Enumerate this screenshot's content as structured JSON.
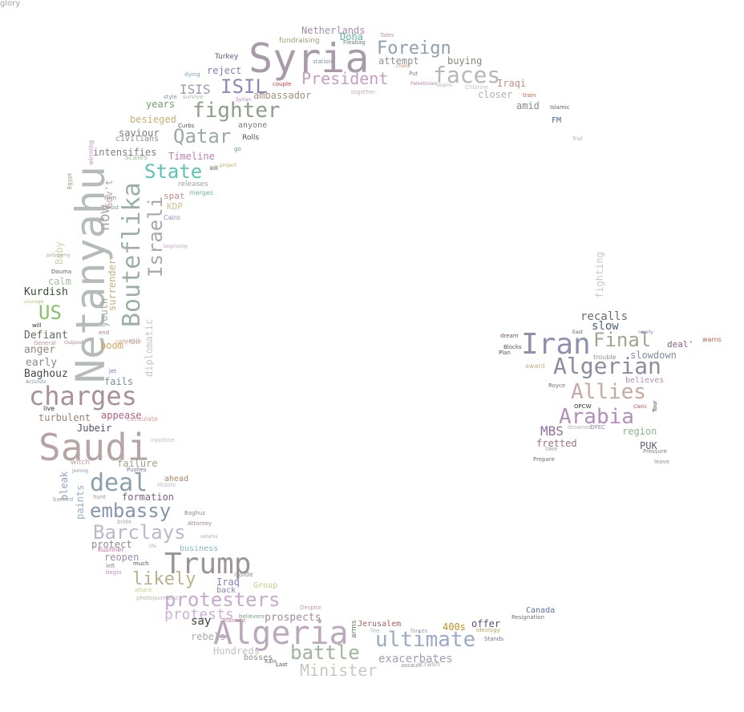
{
  "words": [
    {
      "text": "Syria",
      "color": "#a89aa8"
    },
    {
      "text": "Saudi",
      "color": "#b7a5a5"
    },
    {
      "text": "Netanyahu",
      "color": "#b5bcb7"
    },
    {
      "text": "Algeria",
      "color": "#bba8bd"
    },
    {
      "text": "Trump",
      "color": "#9d9499"
    },
    {
      "text": "Iran",
      "color": "#8f8faf"
    },
    {
      "text": "charges",
      "color": "#a98f9c"
    },
    {
      "text": "Bouteflika",
      "color": "#9ab0a4"
    },
    {
      "text": "deal",
      "color": "#8aa0ac"
    },
    {
      "text": "Algerian",
      "color": "#8f8aa1"
    },
    {
      "text": "ultimate",
      "color": "#9baac8"
    },
    {
      "text": "faces",
      "color": "#b8b6b8"
    },
    {
      "text": "fighter",
      "color": "#8d9e88"
    },
    {
      "text": "Arabia",
      "color": "#b28fb8"
    },
    {
      "text": "Allies",
      "color": "#c7a8a0"
    },
    {
      "text": "embassy",
      "color": "#8494b0"
    },
    {
      "text": "protesters",
      "color": "#c9a8d0"
    },
    {
      "text": "Barclays",
      "color": "#b9b9cc"
    },
    {
      "text": "battle",
      "color": "#9fb49c"
    },
    {
      "text": "Israeli",
      "color": "#a8a8aa"
    },
    {
      "text": "ISIL",
      "color": "#8a8ab8"
    },
    {
      "text": "Qatar",
      "color": "#9aaaa0"
    },
    {
      "text": "Final",
      "color": "#9fa88f"
    },
    {
      "text": "President",
      "color": "#c49fc4"
    },
    {
      "text": "Foreign",
      "color": "#8fa0b0"
    },
    {
      "text": "State",
      "color": "#5fc2b8"
    },
    {
      "text": "US",
      "color": "#86c26a"
    },
    {
      "text": "Minister",
      "color": "#c7c9c1"
    },
    {
      "text": "likely",
      "color": "#bcb089"
    },
    {
      "text": "now",
      "color": "#b0a0a0"
    },
    {
      "text": "protests",
      "color": "#d0b0d8"
    },
    {
      "text": "ISIS",
      "color": "#9a9ab0"
    },
    {
      "text": "MBS",
      "color": "#8f6f9f"
    },
    {
      "text": "exacerbates",
      "color": "#9fa0b8"
    },
    {
      "text": "prospects",
      "color": "#a08aa0"
    },
    {
      "text": "Gov't",
      "color": "#c0a0a0"
    },
    {
      "text": "surrender",
      "color": "#c0b080"
    },
    {
      "text": "diplomatic",
      "color": "#c0c8c8"
    },
    {
      "text": "youth",
      "color": "#a0b0a0"
    },
    {
      "text": "Baby",
      "color": "#c8d8a0"
    },
    {
      "text": "bleak",
      "color": "#90a0c0"
    },
    {
      "text": "paints",
      "color": "#90b0c8"
    },
    {
      "text": "fighting",
      "color": "#c8c8c8"
    },
    {
      "text": "Kurdish",
      "color": "#3a4a3a"
    },
    {
      "text": "Defiant",
      "color": "#6a6a5a"
    },
    {
      "text": "anger",
      "color": "#8a8a7a"
    },
    {
      "text": "early",
      "color": "#8a8a8a"
    },
    {
      "text": "Baghouz",
      "color": "#4a4a4a"
    },
    {
      "text": "calm",
      "color": "#a0c0a0"
    },
    {
      "text": "boom",
      "color": "#d8a060"
    },
    {
      "text": "fails",
      "color": "#7a8aa0"
    },
    {
      "text": "turbulent",
      "color": "#a08070"
    },
    {
      "text": "appease",
      "color": "#b06080"
    },
    {
      "text": "Jubeir",
      "color": "#505070"
    },
    {
      "text": "failure",
      "color": "#a0a080"
    },
    {
      "text": "formation",
      "color": "#806080"
    },
    {
      "text": "ahead",
      "color": "#b08060"
    },
    {
      "text": "reopen",
      "color": "#9a8ab0"
    },
    {
      "text": "protect",
      "color": "#8a8a8a"
    },
    {
      "text": "business",
      "color": "#80b8c0"
    },
    {
      "text": "Iraq",
      "color": "#8080c0"
    },
    {
      "text": "back",
      "color": "#8080a0"
    },
    {
      "text": "say",
      "color": "#404040"
    },
    {
      "text": "rebels",
      "color": "#a8a8a8"
    },
    {
      "text": "Hundreds",
      "color": "#c0c0c0"
    },
    {
      "text": "bosses",
      "color": "#8a8a8a"
    },
    {
      "text": "Group",
      "color": "#c0d080"
    },
    {
      "text": "offer",
      "color": "#505080"
    },
    {
      "text": "400s",
      "color": "#c09020"
    },
    {
      "text": "Canada",
      "color": "#6070a0"
    },
    {
      "text": "Jerusalem",
      "color": "#a06060"
    },
    {
      "text": "arms",
      "color": "#608060"
    },
    {
      "text": "recalls",
      "color": "#6a6a6a"
    },
    {
      "text": "slow",
      "color": "#506070"
    },
    {
      "text": "slowdown",
      "color": "#8090a0"
    },
    {
      "text": "believes",
      "color": "#b090b0"
    },
    {
      "text": "region",
      "color": "#90b090"
    },
    {
      "text": "PUK",
      "color": "#606070"
    },
    {
      "text": "fretted",
      "color": "#a07080"
    },
    {
      "text": "deal'",
      "color": "#8a5a8a"
    },
    {
      "text": "Netherlands",
      "color": "#a08ab0"
    },
    {
      "text": "Doha",
      "color": "#60b0a0"
    },
    {
      "text": "fundraising",
      "color": "#a0a070"
    },
    {
      "text": "attempt",
      "color": "#909098"
    },
    {
      "text": "buying",
      "color": "#8a8a7a"
    },
    {
      "text": "reject",
      "color": "#8080b8"
    },
    {
      "text": "ambassador",
      "color": "#a09080"
    },
    {
      "text": "Iraqi",
      "color": "#c09090"
    },
    {
      "text": "closer",
      "color": "#b0b0b0"
    },
    {
      "text": "amid",
      "color": "#8a8a8a"
    },
    {
      "text": "FM",
      "color": "#4a6a8a"
    },
    {
      "text": "Turkey",
      "color": "#506080"
    },
    {
      "text": "years",
      "color": "#70a070"
    },
    {
      "text": "besieged",
      "color": "#c0b070"
    },
    {
      "text": "saviour",
      "color": "#7a7a7a"
    },
    {
      "text": "civilians",
      "color": "#909090"
    },
    {
      "text": "anyone",
      "color": "#7a7a7a"
    },
    {
      "text": "intensifies",
      "color": "#8a7a7a"
    },
    {
      "text": "Timeline",
      "color": "#c080b0"
    },
    {
      "text": "spat",
      "color": "#c09090"
    },
    {
      "text": "KDP",
      "color": "#d0c090"
    },
    {
      "text": "Rolls",
      "color": "#505050"
    },
    {
      "text": "winning",
      "color": "#c090c0"
    },
    {
      "text": "Egypt",
      "color": "#a09070"
    },
    {
      "text": "scales",
      "color": "#a0c0a0"
    },
    {
      "text": "releases",
      "color": "#a0a0a0"
    },
    {
      "text": "merges",
      "color": "#70b0a0"
    },
    {
      "text": "Cairo",
      "color": "#a080c0"
    },
    {
      "text": "project",
      "color": "#c0b060"
    },
    {
      "text": "kill",
      "color": "#404040"
    },
    {
      "text": "go",
      "color": "#60a070"
    },
    {
      "text": "Oust",
      "color": "#8090b0"
    },
    {
      "text": "Firm",
      "color": "#8080a0"
    },
    {
      "text": "beginning",
      "color": "#c0a0c0"
    },
    {
      "text": "Douma",
      "color": "#606060"
    },
    {
      "text": "polygamy",
      "color": "#b0a0a0"
    },
    {
      "text": "courage",
      "color": "#b0c080"
    },
    {
      "text": "will",
      "color": "#303030"
    },
    {
      "text": "General",
      "color": "#c09090"
    },
    {
      "text": "Outpost",
      "color": "#c080a0"
    },
    {
      "text": "end",
      "color": "#b08080"
    },
    {
      "text": "caliphate",
      "color": "#c0a080"
    },
    {
      "text": "Oil",
      "color": "#c0a0a0"
    },
    {
      "text": "jet",
      "color": "#6080c0"
    },
    {
      "text": "Activists",
      "color": "#8090a0"
    },
    {
      "text": "live",
      "color": "#303030"
    },
    {
      "text": "consulate",
      "color": "#d0a0a0"
    },
    {
      "text": "injustice",
      "color": "#d0b0c0"
    },
    {
      "text": "witch",
      "color": "#c0a0a0"
    },
    {
      "text": "joining",
      "color": "#8090b0"
    },
    {
      "text": "Pushes",
      "color": "#8070a0"
    },
    {
      "text": "Middle",
      "color": "#c0c0c0"
    },
    {
      "text": "hunt",
      "color": "#b09080"
    },
    {
      "text": "backed",
      "color": "#a0a0a0"
    },
    {
      "text": "Baghuz",
      "color": "#8a8a8a"
    },
    {
      "text": "bride",
      "color": "#b0a0c0"
    },
    {
      "text": "Attorney",
      "color": "#a08080"
    },
    {
      "text": "returns",
      "color": "#b0a0c0"
    },
    {
      "text": "life",
      "color": "#a0c0a0"
    },
    {
      "text": "Kushner",
      "color": "#c070a0"
    },
    {
      "text": "left",
      "color": "#8a8a8a"
    },
    {
      "text": "much",
      "color": "#505050"
    },
    {
      "text": "begin",
      "color": "#c090c0"
    },
    {
      "text": "inside",
      "color": "#909090"
    },
    {
      "text": "attack",
      "color": "#c0d080"
    },
    {
      "text": "photojournalist",
      "color": "#c0b0b0"
    },
    {
      "text": "Despite",
      "color": "#c0a0a0"
    },
    {
      "text": "believers",
      "color": "#70a080"
    },
    {
      "text": "Planned",
      "color": "#c080a0"
    },
    {
      "text": "fire",
      "color": "#a0c0c0"
    },
    {
      "text": "forces",
      "color": "#a0a0c0"
    },
    {
      "text": "ideology",
      "color": "#c0a060"
    },
    {
      "text": "Resignation",
      "color": "#707070"
    },
    {
      "text": "Stands",
      "color": "#707090"
    },
    {
      "text": "assault",
      "color": "#909090"
    },
    {
      "text": "crash",
      "color": "#c0a0a0"
    },
    {
      "text": "Kale",
      "color": "#707060"
    },
    {
      "text": "Last",
      "color": "#505050"
    },
    {
      "text": "Tales",
      "color": "#c090a0"
    },
    {
      "text": "Fleabag",
      "color": "#708070"
    },
    {
      "text": "chaos",
      "color": "#c09070"
    },
    {
      "text": "Put",
      "color": "#808080"
    },
    {
      "text": "station",
      "color": "#8090b0"
    },
    {
      "text": "couple",
      "color": "#c04040"
    },
    {
      "text": "Syrian",
      "color": "#c080b0"
    },
    {
      "text": "Palestinian",
      "color": "#b080b0"
    },
    {
      "text": "begins",
      "color": "#b0b0b0"
    },
    {
      "text": "Chlorine",
      "color": "#c0c0c0"
    },
    {
      "text": "train",
      "color": "#c06040"
    },
    {
      "text": "Islamic",
      "color": "#606070"
    },
    {
      "text": "dying",
      "color": "#80a0c0"
    },
    {
      "text": "style",
      "color": "#8090b0"
    },
    {
      "text": "survive",
      "color": "#a0c0a0"
    },
    {
      "text": "together",
      "color": "#c0b0b0"
    },
    {
      "text": "Curbs",
      "color": "#505050"
    },
    {
      "text": "Trial",
      "color": "#c0a0a0"
    },
    {
      "text": "East",
      "color": "#606060"
    },
    {
      "text": "nearly",
      "color": "#8080b0"
    },
    {
      "text": "warns",
      "color": "#c06040"
    },
    {
      "text": "dream",
      "color": "#705070"
    },
    {
      "text": "Blocks",
      "color": "#505050"
    },
    {
      "text": "Plan",
      "color": "#505050"
    },
    {
      "text": "trouble",
      "color": "#909090"
    },
    {
      "text": "award",
      "color": "#c0b080"
    },
    {
      "text": "Royce",
      "color": "#707070"
    },
    {
      "text": "OPCW",
      "color": "#303030"
    },
    {
      "text": "Cleric",
      "color": "#c04040"
    },
    {
      "text": "drowned",
      "color": "#c0b0b0"
    },
    {
      "text": "OPEC",
      "color": "#8090b0"
    },
    {
      "text": "Tour",
      "color": "#404040"
    },
    {
      "text": "take",
      "color": "#a0a0a0"
    },
    {
      "text": "Pressure",
      "color": "#808080"
    },
    {
      "text": "Prepare",
      "color": "#707070"
    },
    {
      "text": "leave",
      "color": "#909090"
    },
    {
      "text": "glory",
      "color": "#a0a0a0"
    }
  ]
}
